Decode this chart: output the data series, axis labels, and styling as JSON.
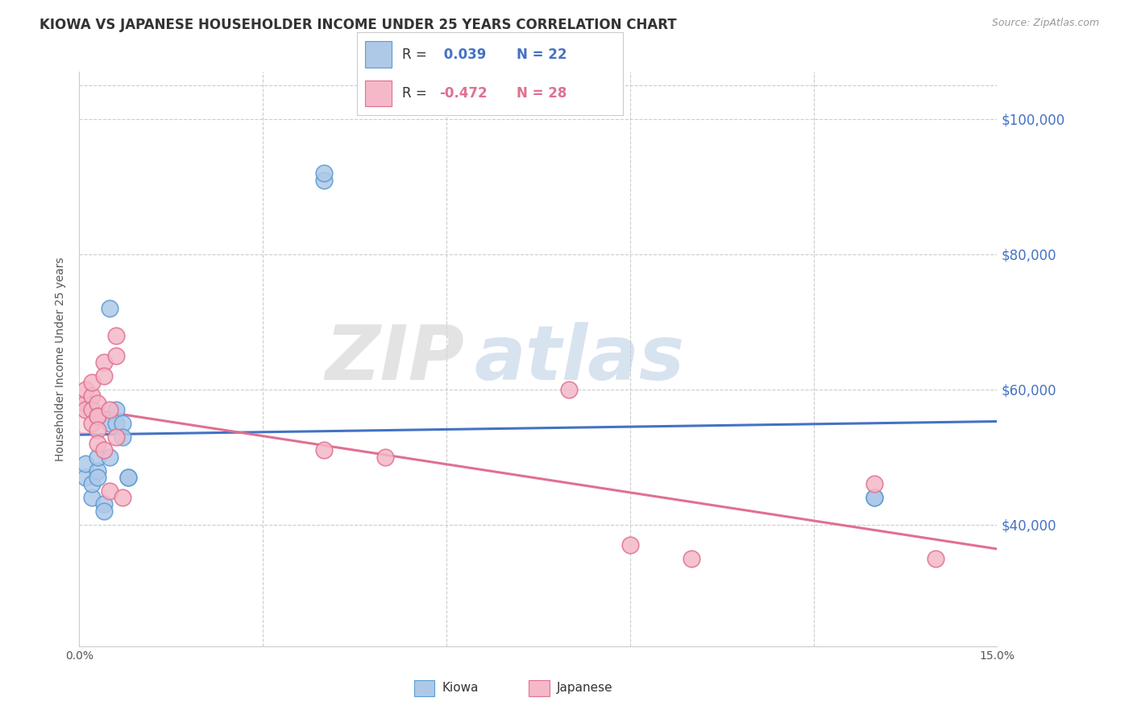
{
  "title": "KIOWA VS JAPANESE HOUSEHOLDER INCOME UNDER 25 YEARS CORRELATION CHART",
  "source": "Source: ZipAtlas.com",
  "ylabel": "Householder Income Under 25 years",
  "xlim": [
    0.0,
    0.15
  ],
  "ylim": [
    22000,
    107000
  ],
  "xticks": [
    0.0,
    0.03,
    0.06,
    0.09,
    0.12,
    0.15
  ],
  "xticklabels": [
    "0.0%",
    "",
    "",
    "",
    "",
    "15.0%"
  ],
  "yticks": [
    40000,
    60000,
    80000,
    100000
  ],
  "yticklabels": [
    "$40,000",
    "$60,000",
    "$80,000",
    "$100,000"
  ],
  "kiowa_x": [
    0.001,
    0.001,
    0.002,
    0.002,
    0.003,
    0.003,
    0.003,
    0.004,
    0.004,
    0.005,
    0.005,
    0.005,
    0.006,
    0.006,
    0.007,
    0.007,
    0.008,
    0.008,
    0.04,
    0.04,
    0.13,
    0.13
  ],
  "kiowa_y": [
    47000,
    49000,
    44000,
    46000,
    48000,
    47000,
    50000,
    43000,
    42000,
    50000,
    55000,
    72000,
    57000,
    55000,
    55000,
    53000,
    47000,
    47000,
    91000,
    92000,
    44000,
    44000
  ],
  "japanese_x": [
    0.001,
    0.001,
    0.001,
    0.002,
    0.002,
    0.002,
    0.002,
    0.003,
    0.003,
    0.003,
    0.003,
    0.003,
    0.004,
    0.004,
    0.004,
    0.005,
    0.005,
    0.006,
    0.006,
    0.006,
    0.007,
    0.04,
    0.05,
    0.08,
    0.09,
    0.1,
    0.13,
    0.14
  ],
  "japanese_y": [
    58000,
    60000,
    57000,
    59000,
    61000,
    57000,
    55000,
    58000,
    56000,
    56000,
    54000,
    52000,
    64000,
    62000,
    51000,
    57000,
    45000,
    68000,
    65000,
    53000,
    44000,
    51000,
    50000,
    60000,
    37000,
    35000,
    46000,
    35000
  ],
  "kiowa_color": "#aec9e8",
  "kiowa_edge_color": "#5b9bd5",
  "japanese_color": "#f4b8c8",
  "japanese_edge_color": "#e07090",
  "kiowa_R": "0.039",
  "kiowa_N": "22",
  "japanese_R": "-0.472",
  "japanese_N": "28",
  "trend_kiowa_color": "#4472c4",
  "trend_japanese_color": "#e07090",
  "watermark_zip": "ZIP",
  "watermark_atlas": "atlas",
  "background_color": "#ffffff",
  "title_fontsize": 12,
  "axis_label_fontsize": 10,
  "tick_fontsize": 10,
  "legend_fontsize": 12,
  "source_fontsize": 9
}
